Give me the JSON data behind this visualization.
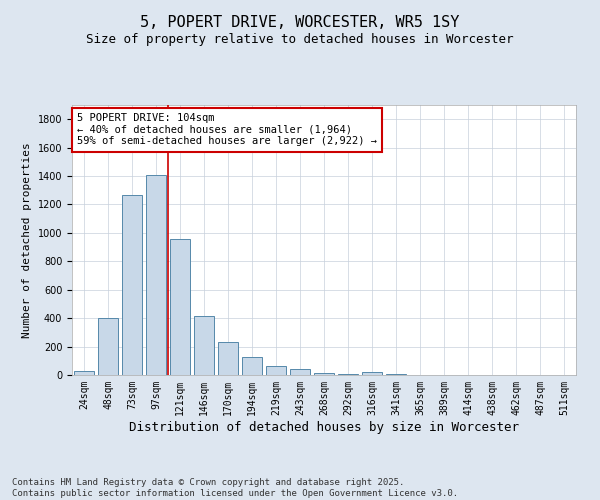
{
  "title": "5, POPERT DRIVE, WORCESTER, WR5 1SY",
  "subtitle": "Size of property relative to detached houses in Worcester",
  "xlabel": "Distribution of detached houses by size in Worcester",
  "ylabel": "Number of detached properties",
  "categories": [
    "24sqm",
    "48sqm",
    "73sqm",
    "97sqm",
    "121sqm",
    "146sqm",
    "170sqm",
    "194sqm",
    "219sqm",
    "243sqm",
    "268sqm",
    "292sqm",
    "316sqm",
    "341sqm",
    "365sqm",
    "389sqm",
    "414sqm",
    "438sqm",
    "462sqm",
    "487sqm",
    "511sqm"
  ],
  "values": [
    25,
    400,
    1265,
    1405,
    960,
    415,
    235,
    125,
    65,
    40,
    15,
    5,
    20,
    5,
    0,
    0,
    0,
    0,
    0,
    0,
    0
  ],
  "bar_color": "#c8d8e8",
  "bar_edge_color": "#5588aa",
  "vline_x": 3.5,
  "vline_color": "#cc0000",
  "annotation_text": "5 POPERT DRIVE: 104sqm\n← 40% of detached houses are smaller (1,964)\n59% of semi-detached houses are larger (2,922) →",
  "annotation_box_color": "#ffffff",
  "annotation_box_edge": "#cc0000",
  "ylim": [
    0,
    1900
  ],
  "yticks": [
    0,
    200,
    400,
    600,
    800,
    1000,
    1200,
    1400,
    1600,
    1800
  ],
  "bg_color": "#dde6f0",
  "plot_bg": "#ffffff",
  "grid_color": "#c8d0dc",
  "footer": "Contains HM Land Registry data © Crown copyright and database right 2025.\nContains public sector information licensed under the Open Government Licence v3.0.",
  "title_fontsize": 11,
  "subtitle_fontsize": 9,
  "xlabel_fontsize": 9,
  "ylabel_fontsize": 8,
  "tick_fontsize": 7,
  "annotation_fontsize": 7.5,
  "footer_fontsize": 6.5
}
